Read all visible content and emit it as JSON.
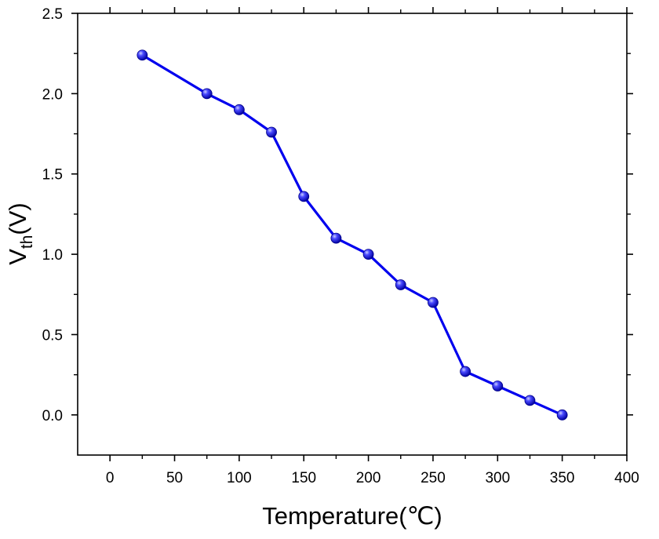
{
  "chart_data": {
    "type": "line",
    "xlabel": "Temperature(℃)",
    "ylabel_main": "V",
    "ylabel_sub": "th",
    "ylabel_tail": "(V)",
    "xlim": [
      -25,
      400
    ],
    "ylim": [
      -0.25,
      2.5
    ],
    "xticks": [
      0,
      50,
      100,
      150,
      200,
      250,
      300,
      350,
      400
    ],
    "yticks": [
      0.0,
      0.5,
      1.0,
      1.5,
      2.0,
      2.5
    ],
    "xtick_labels": [
      "0",
      "50",
      "100",
      "150",
      "200",
      "250",
      "300",
      "350",
      "400"
    ],
    "ytick_labels": [
      "0.0",
      "0.5",
      "1.0",
      "1.5",
      "2.0",
      "2.5"
    ],
    "grid": false,
    "legend": "none",
    "series": [
      {
        "color": "#0000ee",
        "marker": "sphere",
        "x": [
          25,
          75,
          100,
          125,
          150,
          175,
          200,
          225,
          250,
          275,
          300,
          325,
          350
        ],
        "y": [
          2.24,
          2.0,
          1.9,
          1.76,
          1.36,
          1.1,
          1.0,
          0.81,
          0.7,
          0.27,
          0.18,
          0.09,
          0.0
        ]
      }
    ]
  }
}
